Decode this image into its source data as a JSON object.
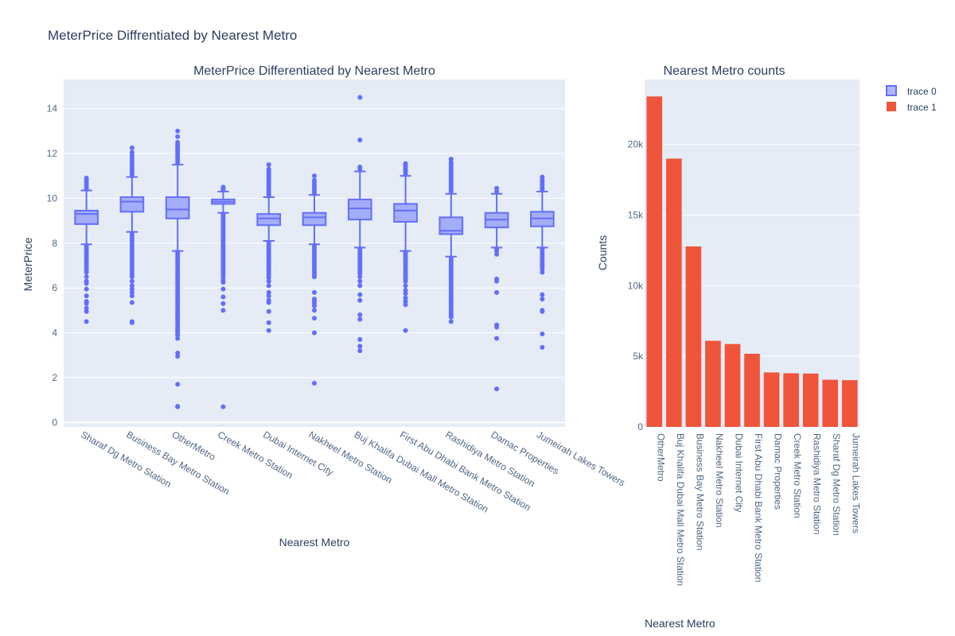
{
  "figure": {
    "title": "MeterPrice Diffrentiated by Nearest Metro",
    "legend": [
      {
        "name": "trace 0",
        "color": "#636efa"
      },
      {
        "name": "trace 1",
        "color": "#EF553B"
      }
    ]
  },
  "chart_data": [
    {
      "type": "box",
      "title": "MeterPrice Differentiated by Nearest Metro",
      "xlabel": "Nearest Metro",
      "ylabel": "MeterPrice",
      "ylim": [
        -0.2,
        15.3
      ],
      "yticks": [
        0,
        2,
        4,
        6,
        8,
        10,
        12,
        14
      ],
      "grid": true,
      "color": "#636efa",
      "categories": [
        "Sharaf Dg Metro Station",
        "Business Bay Metro Station",
        "OtherMetro",
        "Creek Metro Station",
        "Dubai Internet City",
        "Nakheel Metro Station",
        "Buj Khalifa Dubai Mall Metro Station",
        "First Abu Dhabi Bank Metro Station",
        "Rashidiya Metro Station",
        "Damac Properties",
        "Jumeirah Lakes Towers"
      ],
      "boxes": [
        {
          "min": 7.95,
          "q1": 8.85,
          "median": 9.3,
          "q3": 9.45,
          "max": 10.35,
          "outliers_low": [
            7.9,
            7.8,
            7.7,
            7.6,
            7.5,
            7.4,
            7.3,
            7.2,
            7.1,
            7.0,
            6.9,
            6.8,
            6.7,
            6.5,
            6.3,
            6.2,
            5.95,
            5.65,
            5.4,
            5.3,
            5.1,
            4.95,
            4.5
          ],
          "outliers_high": [
            10.4,
            10.5,
            10.6,
            10.7,
            10.8,
            10.9
          ]
        },
        {
          "min": 8.5,
          "q1": 9.4,
          "median": 9.85,
          "q3": 10.05,
          "max": 10.95,
          "outliers_low": [
            8.4,
            8.3,
            8.2,
            8.1,
            8.0,
            7.9,
            7.8,
            7.7,
            7.6,
            7.5,
            7.4,
            7.3,
            7.2,
            7.1,
            7.0,
            6.9,
            6.8,
            6.7,
            6.6,
            6.5,
            6.3,
            6.1,
            5.95,
            5.8,
            5.65,
            5.35,
            4.5,
            4.45
          ],
          "outliers_high": [
            11.0,
            11.1,
            11.2,
            11.3,
            11.4,
            11.5,
            11.6,
            11.7,
            11.8,
            11.9,
            12.05,
            12.25
          ]
        },
        {
          "min": 7.65,
          "q1": 9.1,
          "median": 9.5,
          "q3": 10.05,
          "max": 11.5,
          "outliers_low": [
            7.6,
            7.5,
            7.4,
            7.3,
            7.2,
            7.1,
            7.0,
            6.9,
            6.8,
            6.7,
            6.6,
            6.5,
            6.4,
            6.3,
            6.2,
            6.1,
            6.0,
            5.9,
            5.8,
            5.7,
            5.6,
            5.5,
            5.4,
            5.3,
            5.2,
            5.1,
            5.0,
            4.9,
            4.8,
            4.7,
            4.6,
            4.5,
            4.4,
            4.3,
            4.2,
            4.1,
            4.0,
            3.9,
            3.75,
            3.1,
            2.95,
            1.7,
            0.72,
            0.7
          ],
          "outliers_high": [
            11.6,
            11.7,
            11.8,
            11.9,
            12.0,
            12.1,
            12.2,
            12.3,
            12.4,
            12.5,
            12.75,
            13.0
          ]
        },
        {
          "min": 9.35,
          "q1": 9.75,
          "median": 9.85,
          "q3": 9.95,
          "max": 10.3,
          "outliers_low": [
            9.3,
            9.2,
            9.1,
            9.0,
            8.9,
            8.8,
            8.7,
            8.6,
            8.5,
            8.4,
            8.3,
            8.2,
            8.1,
            8.0,
            7.9,
            7.8,
            7.7,
            7.6,
            7.5,
            7.4,
            7.3,
            7.2,
            7.1,
            7.0,
            6.9,
            6.8,
            6.7,
            6.6,
            6.5,
            6.35,
            6.25,
            5.95,
            5.6,
            5.3,
            5.0,
            0.7
          ],
          "outliers_high": [
            10.35,
            10.4,
            10.45,
            10.5
          ]
        },
        {
          "min": 8.1,
          "q1": 8.8,
          "median": 9.1,
          "q3": 9.3,
          "max": 10.05,
          "outliers_low": [
            8.05,
            7.95,
            7.85,
            7.75,
            7.65,
            7.55,
            7.45,
            7.35,
            7.25,
            7.15,
            7.05,
            6.95,
            6.85,
            6.75,
            6.65,
            6.55,
            6.45,
            6.3,
            6.1,
            5.8,
            5.65,
            5.45,
            5.35,
            4.95,
            4.45,
            4.1
          ],
          "outliers_high": [
            10.1,
            10.2,
            10.3,
            10.4,
            10.5,
            10.6,
            10.7,
            10.8,
            10.9,
            11.0,
            11.1,
            11.2,
            11.3,
            11.5
          ]
        },
        {
          "min": 7.95,
          "q1": 8.8,
          "median": 9.15,
          "q3": 9.35,
          "max": 10.15,
          "outliers_low": [
            7.9,
            7.8,
            7.7,
            7.6,
            7.5,
            7.4,
            7.3,
            7.2,
            7.1,
            7.0,
            6.9,
            6.8,
            6.7,
            6.6,
            6.5,
            5.8,
            5.5,
            5.4,
            5.3,
            5.2,
            5.0,
            4.65,
            4.0,
            1.75
          ],
          "outliers_high": [
            10.2,
            10.3,
            10.4,
            10.5,
            10.6,
            10.7,
            10.8,
            11.0
          ]
        },
        {
          "min": 7.8,
          "q1": 9.05,
          "median": 9.55,
          "q3": 9.95,
          "max": 11.2,
          "outliers_low": [
            7.75,
            7.65,
            7.55,
            7.45,
            7.35,
            7.25,
            7.15,
            7.05,
            6.95,
            6.85,
            6.75,
            6.65,
            6.5,
            6.3,
            6.1,
            5.7,
            5.45,
            4.8,
            4.6,
            3.7,
            3.4,
            3.2
          ],
          "outliers_high": [
            11.3,
            11.4,
            12.6,
            14.5
          ]
        },
        {
          "min": 7.65,
          "q1": 8.95,
          "median": 9.45,
          "q3": 9.75,
          "max": 11.0,
          "outliers_low": [
            7.6,
            7.5,
            7.4,
            7.3,
            7.2,
            7.1,
            7.0,
            6.9,
            6.8,
            6.7,
            6.6,
            6.5,
            6.4,
            6.3,
            6.1,
            5.9,
            5.75,
            5.55,
            5.4,
            5.25,
            4.1
          ],
          "outliers_high": [
            11.1,
            11.2,
            11.3,
            11.4,
            11.5,
            11.55
          ]
        },
        {
          "min": 7.4,
          "q1": 8.4,
          "median": 8.55,
          "q3": 9.15,
          "max": 10.2,
          "outliers_low": [
            7.3,
            7.2,
            7.1,
            7.0,
            6.9,
            6.8,
            6.7,
            6.6,
            6.5,
            6.4,
            6.3,
            6.2,
            6.1,
            6.0,
            5.9,
            5.8,
            5.7,
            5.6,
            5.5,
            5.4,
            5.3,
            5.2,
            5.1,
            5.0,
            4.9,
            4.8,
            4.7,
            4.5
          ],
          "outliers_high": [
            10.3,
            10.4,
            10.5,
            10.6,
            10.7,
            10.8,
            10.9,
            11.0,
            11.1,
            11.2,
            11.3,
            11.4,
            11.5,
            11.6,
            11.75
          ]
        },
        {
          "min": 7.8,
          "q1": 8.7,
          "median": 9.05,
          "q3": 9.35,
          "max": 10.2,
          "outliers_low": [
            7.75,
            7.65,
            7.5,
            6.4,
            6.3,
            5.8,
            4.35,
            4.25,
            3.75,
            1.5
          ],
          "outliers_high": [
            10.3,
            10.45
          ]
        },
        {
          "min": 7.8,
          "q1": 8.75,
          "median": 9.1,
          "q3": 9.4,
          "max": 10.3,
          "outliers_low": [
            7.75,
            7.65,
            7.55,
            7.45,
            7.35,
            7.25,
            7.15,
            7.05,
            6.95,
            6.85,
            6.7,
            5.7,
            5.5,
            5.0,
            4.95,
            3.95,
            3.35
          ],
          "outliers_high": [
            10.4,
            10.5,
            10.6,
            10.7,
            10.8,
            10.95
          ]
        }
      ]
    },
    {
      "type": "bar",
      "title": "Nearest Metro counts",
      "xlabel": "Nearest Metro",
      "ylabel": "Counts",
      "ylim": [
        0,
        24600
      ],
      "ytick_values": [
        0,
        5000,
        10000,
        15000,
        20000
      ],
      "ytick_labels": [
        "0",
        "5k",
        "10k",
        "15k",
        "20k"
      ],
      "grid": true,
      "color": "#EF553B",
      "categories": [
        "OtherMetro",
        "Buj Khalifa Dubai Mall Metro Station",
        "Business Bay Metro Station",
        "Nakheel Metro Station",
        "Dubai Internet City",
        "First Abu Dhabi Bank Metro Station",
        "Damac Properties",
        "Creek Metro Station",
        "Rashidiya Metro Station",
        "Sharaf Dg Metro Station",
        "Jumeirah Lakes Towers"
      ],
      "values": [
        23400,
        19000,
        12780,
        6100,
        5870,
        5180,
        3860,
        3800,
        3780,
        3340,
        3310
      ]
    }
  ]
}
